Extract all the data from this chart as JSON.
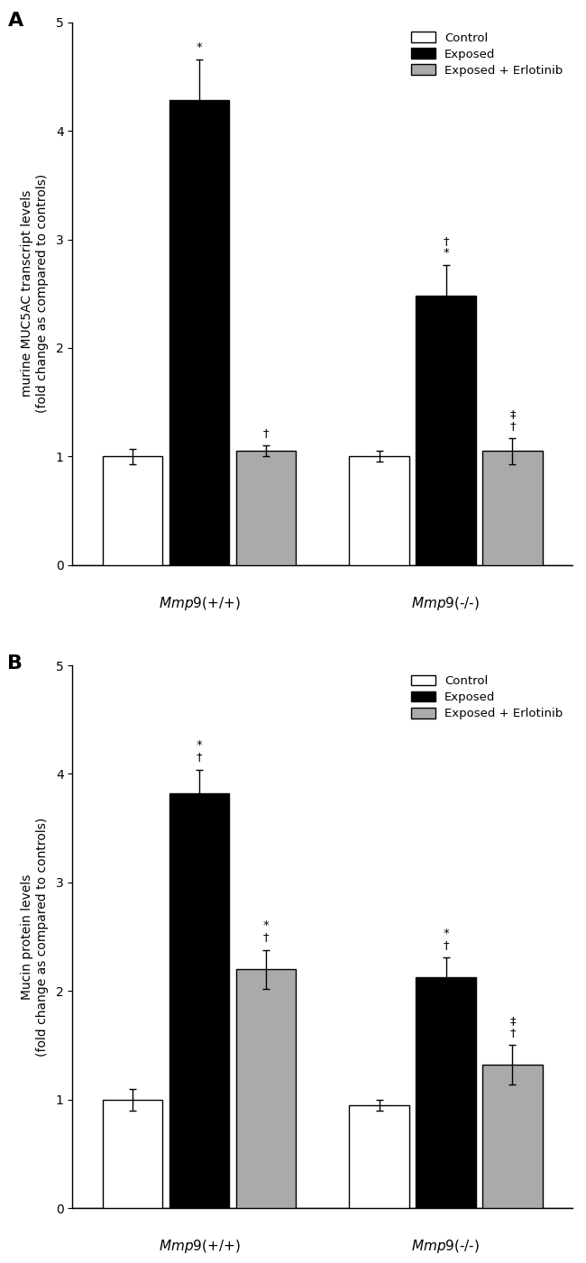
{
  "panel_A": {
    "title_label": "A",
    "ylabel": "murine MUC5AC transcript levels\n(fold change as compared to controls)",
    "ylim": [
      0,
      5
    ],
    "yticks": [
      0,
      1,
      2,
      3,
      4,
      5
    ],
    "groups": [
      "Mmp9(+/+)",
      "Mmp9(-/-)"
    ],
    "bars": {
      "control": [
        1.0,
        1.0
      ],
      "exposed": [
        4.28,
        2.48
      ],
      "erlotinib": [
        1.05,
        1.05
      ]
    },
    "errors": {
      "control": [
        0.07,
        0.05
      ],
      "exposed": [
        0.38,
        0.28
      ],
      "erlotinib": [
        0.05,
        0.12
      ]
    },
    "annotations_control": [
      "",
      ""
    ],
    "annotations_exposed": [
      "*",
      "†\n*"
    ],
    "annotations_erlotinib": [
      "†",
      "‡\n†"
    ],
    "bar_colors": [
      "#ffffff",
      "#000000",
      "#aaaaaa"
    ],
    "bar_edgecolor": "#000000"
  },
  "panel_B": {
    "title_label": "B",
    "ylabel": "Mucin protein levels\n(fold change as compared to controls)",
    "ylim": [
      0,
      5
    ],
    "yticks": [
      0,
      1,
      2,
      3,
      4,
      5
    ],
    "groups": [
      "Mmp9(+/+)",
      "Mmp9(-/-)"
    ],
    "bars": {
      "control": [
        1.0,
        0.95
      ],
      "exposed": [
        3.82,
        2.13
      ],
      "erlotinib": [
        2.2,
        1.32
      ]
    },
    "errors": {
      "control": [
        0.1,
        0.05
      ],
      "exposed": [
        0.22,
        0.18
      ],
      "erlotinib": [
        0.18,
        0.18
      ]
    },
    "annotations_control": [
      "",
      ""
    ],
    "annotations_exposed": [
      "*\n†",
      "*\n†"
    ],
    "annotations_erlotinib": [
      "*\n†",
      "‡\n†"
    ],
    "bar_colors": [
      "#ffffff",
      "#000000",
      "#aaaaaa"
    ],
    "bar_edgecolor": "#000000"
  },
  "legend_A_labels": [
    "Control",
    "Exposed",
    "Exposed + Erlotinib"
  ],
  "legend_A_colors": [
    "#ffffff",
    "#000000",
    "#aaaaaa"
  ],
  "legend_B_labels": [
    "Control",
    "Exposed",
    "Exposed + Erlotinib"
  ],
  "legend_B_colors": [
    "#ffffff",
    "#000000",
    "#aaaaaa"
  ],
  "figsize": [
    6.5,
    14.01
  ],
  "dpi": 100,
  "bar_width": 0.2,
  "group_centers": [
    0.38,
    1.12
  ],
  "xlim": [
    0.0,
    1.5
  ]
}
